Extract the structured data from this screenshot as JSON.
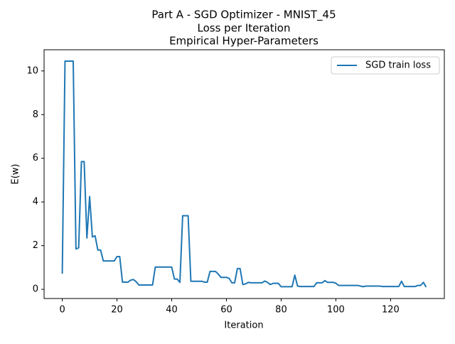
{
  "chart_data": {
    "type": "line",
    "title": [
      "Part A -  SGD Optimizer - MNIST_45",
      "Loss per Iteration",
      " Empirical Hyper-Parameters"
    ],
    "xlabel": "Iteration",
    "ylabel": "E(w)",
    "x": [
      0,
      1,
      2,
      3,
      4,
      5,
      6,
      7,
      8,
      9,
      10,
      11,
      12,
      13,
      14,
      15,
      16,
      17,
      18,
      19,
      20,
      21,
      22,
      23,
      24,
      25,
      26,
      27,
      28,
      29,
      30,
      31,
      32,
      33,
      34,
      35,
      36,
      37,
      38,
      39,
      40,
      41,
      42,
      43,
      44,
      45,
      46,
      47,
      48,
      49,
      50,
      51,
      52,
      53,
      54,
      55,
      56,
      57,
      58,
      59,
      60,
      61,
      62,
      63,
      64,
      65,
      66,
      67,
      68,
      69,
      70,
      71,
      72,
      73,
      74,
      75,
      76,
      77,
      78,
      79,
      80,
      81,
      82,
      83,
      84,
      85,
      86,
      87,
      88,
      89,
      90,
      91,
      92,
      93,
      94,
      95,
      96,
      97,
      98,
      99,
      100,
      101,
      102,
      103,
      104,
      105,
      106,
      107,
      108,
      109,
      110,
      111,
      112,
      113,
      114,
      115,
      116,
      117,
      118,
      119,
      120,
      121,
      122,
      123,
      124,
      125,
      126,
      127,
      128,
      129,
      130,
      131,
      132,
      133
    ],
    "series": [
      {
        "name": "SGD train loss",
        "color": "#1f77b4",
        "values": [
          0.72,
          10.45,
          10.45,
          10.45,
          10.45,
          1.85,
          1.9,
          5.85,
          5.85,
          2.35,
          4.25,
          2.4,
          2.45,
          1.8,
          1.8,
          1.3,
          1.3,
          1.3,
          1.3,
          1.3,
          1.5,
          1.5,
          0.33,
          0.33,
          0.33,
          0.42,
          0.45,
          0.35,
          0.2,
          0.2,
          0.2,
          0.2,
          0.2,
          0.2,
          1.02,
          1.02,
          1.02,
          1.02,
          1.02,
          1.02,
          1.02,
          0.47,
          0.47,
          0.32,
          3.37,
          3.37,
          3.37,
          0.37,
          0.37,
          0.37,
          0.37,
          0.37,
          0.33,
          0.33,
          0.82,
          0.82,
          0.82,
          0.7,
          0.55,
          0.55,
          0.55,
          0.5,
          0.3,
          0.3,
          0.95,
          0.95,
          0.22,
          0.25,
          0.32,
          0.3,
          0.3,
          0.3,
          0.3,
          0.3,
          0.38,
          0.32,
          0.22,
          0.27,
          0.28,
          0.27,
          0.12,
          0.12,
          0.12,
          0.12,
          0.12,
          0.65,
          0.15,
          0.13,
          0.13,
          0.13,
          0.13,
          0.13,
          0.13,
          0.3,
          0.3,
          0.3,
          0.4,
          0.32,
          0.32,
          0.32,
          0.28,
          0.18,
          0.18,
          0.18,
          0.18,
          0.18,
          0.18,
          0.18,
          0.18,
          0.15,
          0.12,
          0.15,
          0.15,
          0.15,
          0.15,
          0.15,
          0.15,
          0.13,
          0.13,
          0.13,
          0.13,
          0.13,
          0.13,
          0.13,
          0.37,
          0.13,
          0.13,
          0.13,
          0.13,
          0.13,
          0.18,
          0.18,
          0.32,
          0.1
        ]
      }
    ],
    "xlim": [
      -6.65,
      139.65
    ],
    "xticks": [
      0,
      20,
      40,
      60,
      80,
      100,
      120
    ],
    "ylim": [
      -0.42,
      10.97
    ],
    "yticks": [
      0,
      2,
      4,
      6,
      8,
      10
    ],
    "legend": "upper right",
    "grid": false
  }
}
